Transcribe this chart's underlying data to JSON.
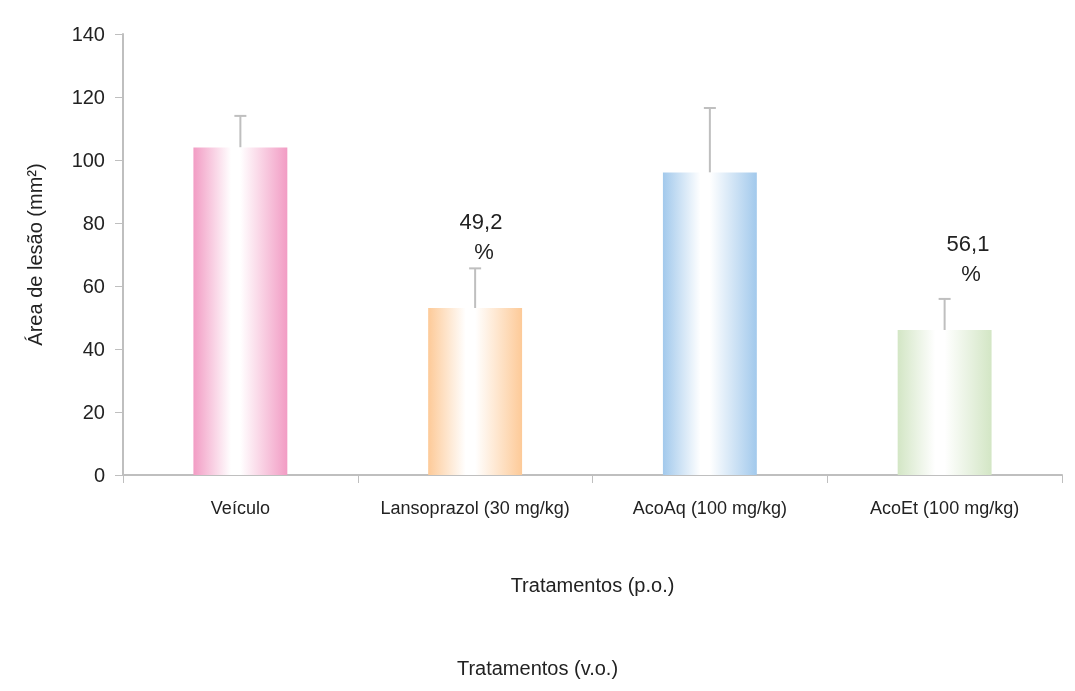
{
  "chart_data": {
    "type": "bar",
    "categories": [
      "Veículo",
      "Lansoprazol (30 mg/kg)",
      "AcoAq (100 mg/kg)",
      "AcoEt (100 mg/kg)"
    ],
    "values": [
      104,
      53,
      96,
      46
    ],
    "colors": [
      "#f29cc4",
      "#fdca98",
      "#a2c9ec",
      "#d3e6c5"
    ],
    "errors": [
      [
        104,
        114
      ],
      [
        53,
        65.6
      ],
      [
        96,
        116.5
      ],
      [
        46,
        55.9
      ]
    ],
    "ylim": [
      0,
      140
    ],
    "yticks": [
      0,
      20,
      40,
      60,
      80,
      100,
      120,
      140
    ],
    "ylabel": "Área de lesão (mm²)",
    "xlabel": "Tratamentos (p.o.)",
    "grid": false,
    "annotations": [
      "49,2 %",
      "56,1 %",
      "Tratamentos (v.o.)"
    ]
  }
}
